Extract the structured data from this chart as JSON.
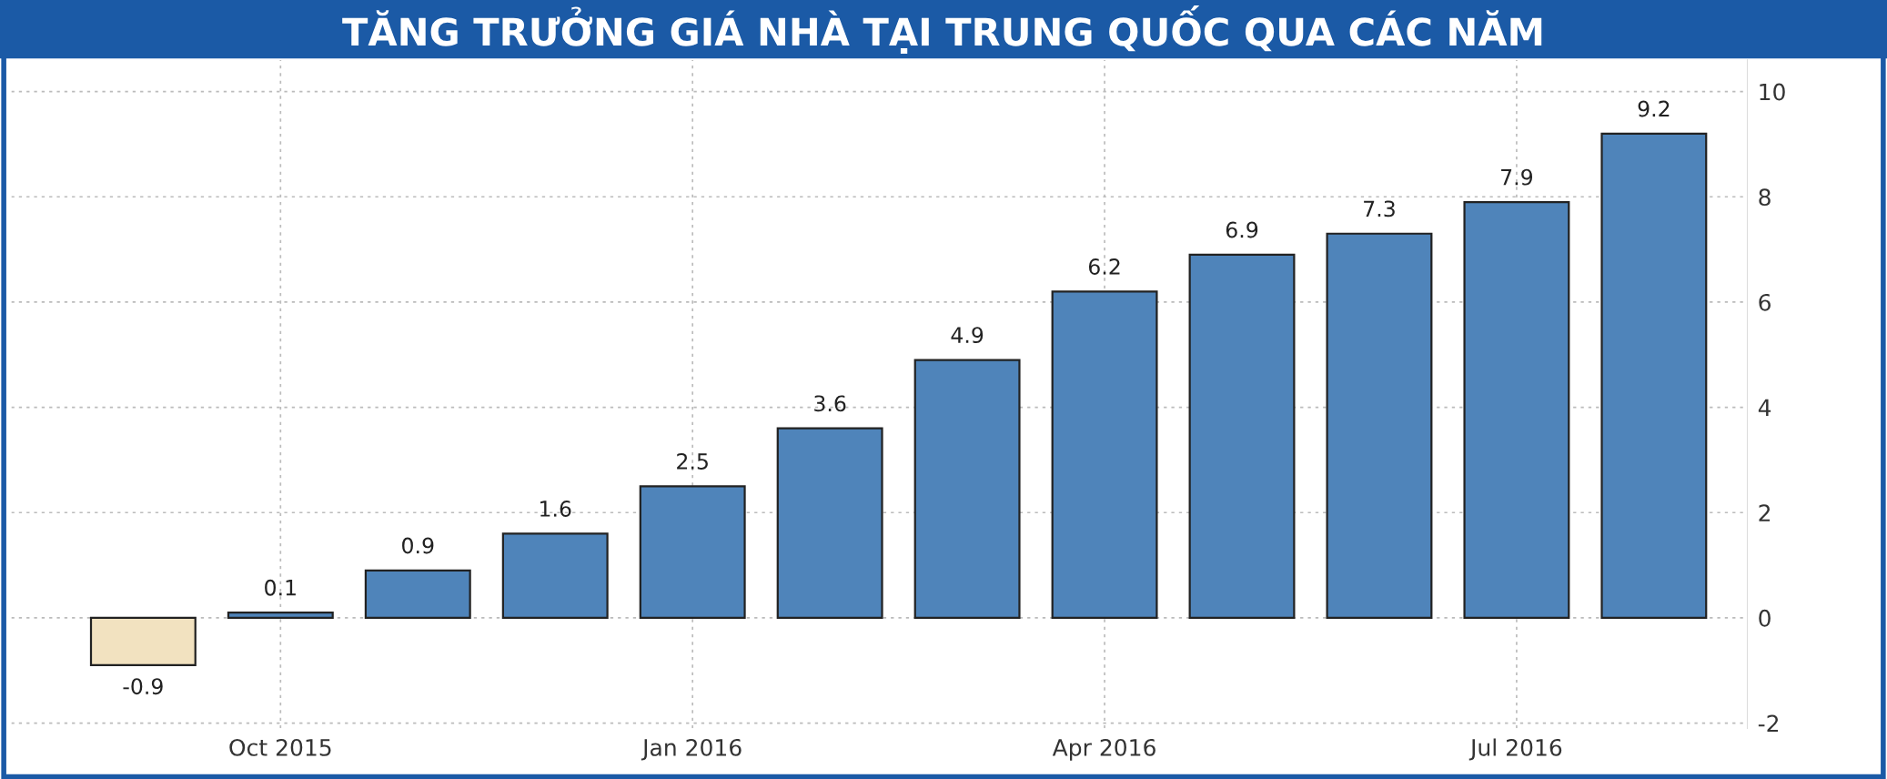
{
  "chart_data": {
    "type": "bar",
    "title": "TĂNG TRƯỞNG GIÁ NHÀ TẠI TRUNG QUỐC QUA CÁC NĂM",
    "categories": [
      null,
      "Oct 2015",
      null,
      null,
      "Jan 2016",
      null,
      null,
      "Apr 2016",
      null,
      null,
      "Jul 2016",
      null
    ],
    "values": [
      -0.9,
      0.1,
      0.9,
      1.6,
      2.5,
      3.6,
      4.9,
      6.2,
      6.9,
      7.3,
      7.9,
      9.2
    ],
    "colors": [
      "#f2e2c0",
      "#4f84ba",
      "#4f84ba",
      "#4f84ba",
      "#4f84ba",
      "#4f84ba",
      "#4f84ba",
      "#4f84ba",
      "#4f84ba",
      "#4f84ba",
      "#4f84ba",
      "#4f84ba"
    ],
    "ylim": [
      -2.1,
      10.6
    ],
    "yticks": [
      -2,
      0,
      2,
      4,
      6,
      8,
      10
    ],
    "grid": true,
    "data_labels": true
  }
}
